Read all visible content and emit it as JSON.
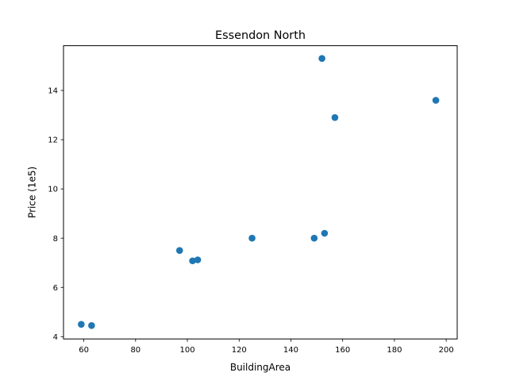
{
  "chart_data": {
    "type": "scatter",
    "title": "Essendon North",
    "xlabel": "BuildingArea",
    "ylabel": "Price (1e5)",
    "xlim": [
      52.15,
      204.25
    ],
    "ylim": [
      3.907,
      15.818
    ],
    "xticks": [
      60,
      80,
      100,
      120,
      140,
      160,
      180,
      200
    ],
    "yticks": [
      4,
      6,
      8,
      10,
      12,
      14
    ],
    "grid": false,
    "marker_color": "#1f77b4",
    "series": [
      {
        "points": [
          {
            "x": 59,
            "y": 4.5
          },
          {
            "x": 63,
            "y": 4.45
          },
          {
            "x": 97,
            "y": 7.5
          },
          {
            "x": 102,
            "y": 7.08
          },
          {
            "x": 104,
            "y": 7.12
          },
          {
            "x": 125,
            "y": 8.0
          },
          {
            "x": 149,
            "y": 8.0
          },
          {
            "x": 152,
            "y": 15.3
          },
          {
            "x": 153,
            "y": 8.2
          },
          {
            "x": 157,
            "y": 12.9
          },
          {
            "x": 196,
            "y": 13.6
          }
        ]
      }
    ]
  }
}
